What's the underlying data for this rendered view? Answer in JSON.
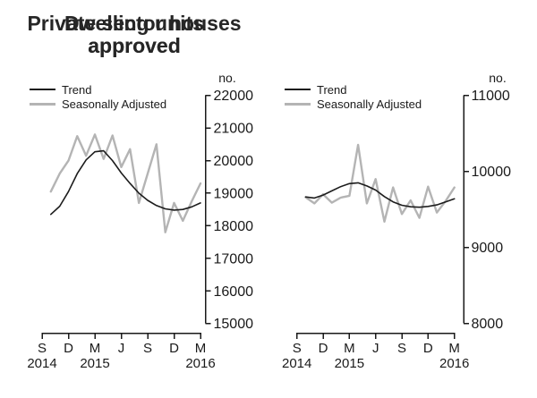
{
  "chart_data": [
    {
      "type": "line",
      "title": "Dwelling units approved",
      "title_lines": [
        "Dwelling units",
        "approved"
      ],
      "unit_label": "no.",
      "x": [
        "Oct 2014",
        "Nov 2014",
        "Dec 2014",
        "Jan 2015",
        "Feb 2015",
        "Mar 2015",
        "Apr 2015",
        "May 2015",
        "Jun 2015",
        "Jul 2015",
        "Aug 2015",
        "Sep 2015",
        "Oct 2015",
        "Nov 2015",
        "Dec 2015",
        "Jan 2016",
        "Feb 2016",
        "Mar 2016"
      ],
      "series": [
        {
          "name": "Trend",
          "color": "#1c1c1c",
          "values": [
            18350,
            18600,
            19050,
            19600,
            20020,
            20270,
            20300,
            20000,
            19620,
            19300,
            19000,
            18780,
            18620,
            18520,
            18480,
            18500,
            18580,
            18700
          ]
        },
        {
          "name": "Seasonally Adjusted",
          "color": "#b4b4b4",
          "values": [
            19050,
            19600,
            20000,
            20750,
            20150,
            20800,
            20050,
            20770,
            19800,
            20350,
            18700,
            19600,
            20500,
            17800,
            18700,
            18150,
            18750,
            19300
          ]
        }
      ],
      "ylim": [
        15000,
        22000
      ],
      "yticks": [
        15000,
        16000,
        17000,
        18000,
        19000,
        20000,
        21000,
        22000
      ],
      "xticks": [
        "S",
        "D",
        "M",
        "J",
        "S",
        "D",
        "M"
      ],
      "year_labels": [
        {
          "text": "2014",
          "tick": 0
        },
        {
          "text": "2015",
          "tick": 2
        },
        {
          "text": "2016",
          "tick": 6
        }
      ],
      "legend_position": "top-left",
      "grid": false
    },
    {
      "type": "line",
      "title": "Private sector houses approved",
      "title_lines": [
        "Private sector houses",
        "approved"
      ],
      "unit_label": "no.",
      "x": [
        "Oct 2014",
        "Nov 2014",
        "Dec 2014",
        "Jan 2015",
        "Feb 2015",
        "Mar 2015",
        "Apr 2015",
        "May 2015",
        "Jun 2015",
        "Jul 2015",
        "Aug 2015",
        "Sep 2015",
        "Oct 2015",
        "Nov 2015",
        "Dec 2015",
        "Jan 2016",
        "Feb 2016",
        "Mar 2016"
      ],
      "series": [
        {
          "name": "Trend",
          "color": "#1c1c1c",
          "values": [
            9665,
            9650,
            9690,
            9745,
            9800,
            9840,
            9850,
            9810,
            9755,
            9670,
            9600,
            9555,
            9535,
            9530,
            9540,
            9560,
            9600,
            9640
          ]
        },
        {
          "name": "Seasonally Adjusted",
          "color": "#b4b4b4",
          "values": [
            9660,
            9580,
            9700,
            9590,
            9655,
            9680,
            10350,
            9580,
            9900,
            9340,
            9790,
            9440,
            9620,
            9390,
            9800,
            9460,
            9610,
            9790
          ]
        }
      ],
      "ylim": [
        8000,
        11000
      ],
      "yticks": [
        8000,
        9000,
        10000,
        11000
      ],
      "xticks": [
        "S",
        "D",
        "M",
        "J",
        "S",
        "D",
        "M"
      ],
      "year_labels": [
        {
          "text": "2014",
          "tick": 0
        },
        {
          "text": "2015",
          "tick": 2
        },
        {
          "text": "2016",
          "tick": 6
        }
      ],
      "legend_position": "top-left",
      "grid": false
    }
  ]
}
